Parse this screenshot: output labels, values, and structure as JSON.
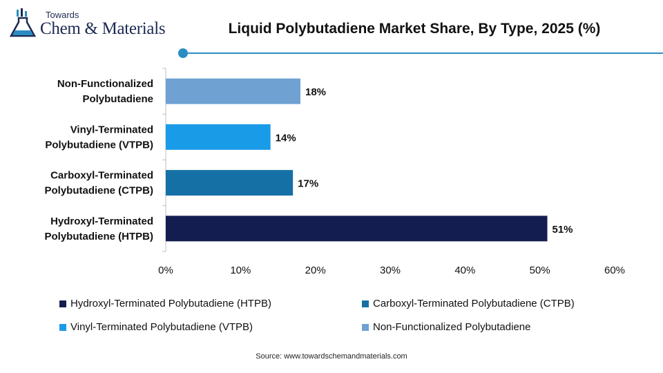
{
  "logo": {
    "top_text": "Towards",
    "main_text": "Chem & Materials"
  },
  "title": "Liquid Polybutadiene Market Share, By Type, 2025 (%)",
  "colors": {
    "accent": "#2a8dc3",
    "text": "#111111",
    "axis": "#bfbfbf"
  },
  "chart_data": {
    "type": "bar",
    "orientation": "horizontal",
    "title": "Liquid Polybutadiene Market Share, By Type, 2025 (%)",
    "categories": [
      [
        "Hydroxyl-Terminated",
        "Polybutadiene (HTPB)"
      ],
      [
        "Carboxyl-Terminated",
        "Polybutadiene (CTPB)"
      ],
      [
        "Vinyl-Terminated",
        "Polybutadiene (VTPB)"
      ],
      [
        "Non-Functionalized",
        "Polybutadiene"
      ]
    ],
    "values": [
      51,
      17,
      14,
      18
    ],
    "value_labels": [
      "51%",
      "17%",
      "14%",
      "18%"
    ],
    "colors": [
      "#141d4f",
      "#1570a6",
      "#1a9be8",
      "#6fa2d2"
    ],
    "xlim": [
      0,
      60
    ],
    "xticks": [
      0,
      10,
      20,
      30,
      40,
      50,
      60
    ],
    "xtick_labels": [
      "0%",
      "10%",
      "20%",
      "30%",
      "40%",
      "50%",
      "60%"
    ],
    "grid": false,
    "legend_position": "bottom",
    "legend": [
      {
        "label": "Hydroxyl-Terminated Polybutadiene (HTPB)",
        "color": "#141d4f"
      },
      {
        "label": "Carboxyl-Terminated Polybutadiene (CTPB)",
        "color": "#1570a6"
      },
      {
        "label": "Vinyl-Terminated Polybutadiene (VTPB)",
        "color": "#1a9be8"
      },
      {
        "label": "Non-Functionalized Polybutadiene",
        "color": "#6fa2d2"
      }
    ]
  },
  "source": "Source: www.towardschemandmaterials.com"
}
